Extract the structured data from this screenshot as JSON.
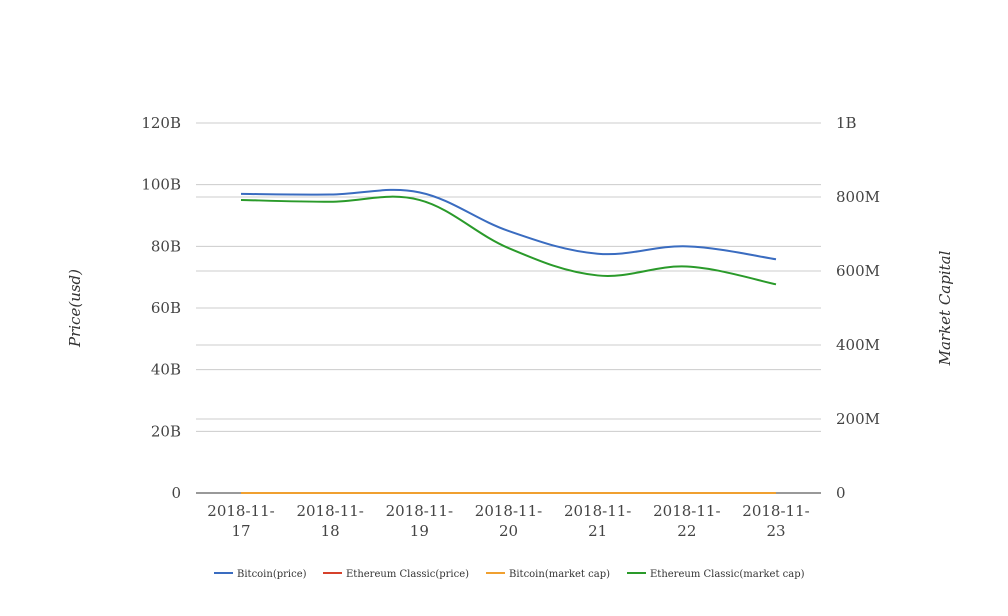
{
  "chart_data": {
    "type": "line",
    "x": [
      "2018-11-17",
      "2018-11-18",
      "2018-11-19",
      "2018-11-20",
      "2018-11-21",
      "2018-11-22",
      "2018-11-23"
    ],
    "x_tick_labels": [
      [
        "2018-11-",
        "17"
      ],
      [
        "2018-11-",
        "18"
      ],
      [
        "2018-11-",
        "19"
      ],
      [
        "2018-11-",
        "20"
      ],
      [
        "2018-11-",
        "21"
      ],
      [
        "2018-11-",
        "22"
      ],
      [
        "2018-11-",
        "23"
      ]
    ],
    "y_left": {
      "label": "Price(usd)",
      "range": [
        0,
        120000000000
      ],
      "ticks": [
        0,
        20000000000,
        40000000000,
        60000000000,
        80000000000,
        100000000000,
        120000000000
      ],
      "tick_labels": [
        "0",
        "20B",
        "40B",
        "60B",
        "80B",
        "100B",
        "120B"
      ]
    },
    "y_right": {
      "label": "Market Capital",
      "range": [
        0,
        1000000000
      ],
      "ticks": [
        0,
        200000000,
        400000000,
        600000000,
        800000000,
        1000000000
      ],
      "tick_labels": [
        "0",
        "200M",
        "400M",
        "600M",
        "800M",
        "1B"
      ]
    },
    "grid": true,
    "legend_position": "bottom",
    "series": [
      {
        "name": "Bitcoin(price)",
        "axis": "left",
        "color": "#3a6cc0",
        "values": [
          97000000000,
          96800000000,
          97500000000,
          85000000000,
          77600000000,
          80000000000,
          75800000000
        ]
      },
      {
        "name": "Ethereum Classic(price)",
        "axis": "left",
        "color": "#d6412b",
        "values": [
          5.0,
          5.0,
          4.9,
          4.3,
          3.9,
          4.3,
          4.2
        ]
      },
      {
        "name": "Bitcoin(market cap)",
        "axis": "left",
        "color": "#f0a030",
        "values": [
          6100,
          5600,
          5500,
          4700,
          4600,
          4500,
          4300
        ]
      },
      {
        "name": "Ethereum Classic(market cap)",
        "axis": "right",
        "color": "#2a9a2a",
        "values": [
          792000000,
          787000000,
          792000000,
          662000000,
          588000000,
          612000000,
          564000000
        ]
      }
    ]
  }
}
